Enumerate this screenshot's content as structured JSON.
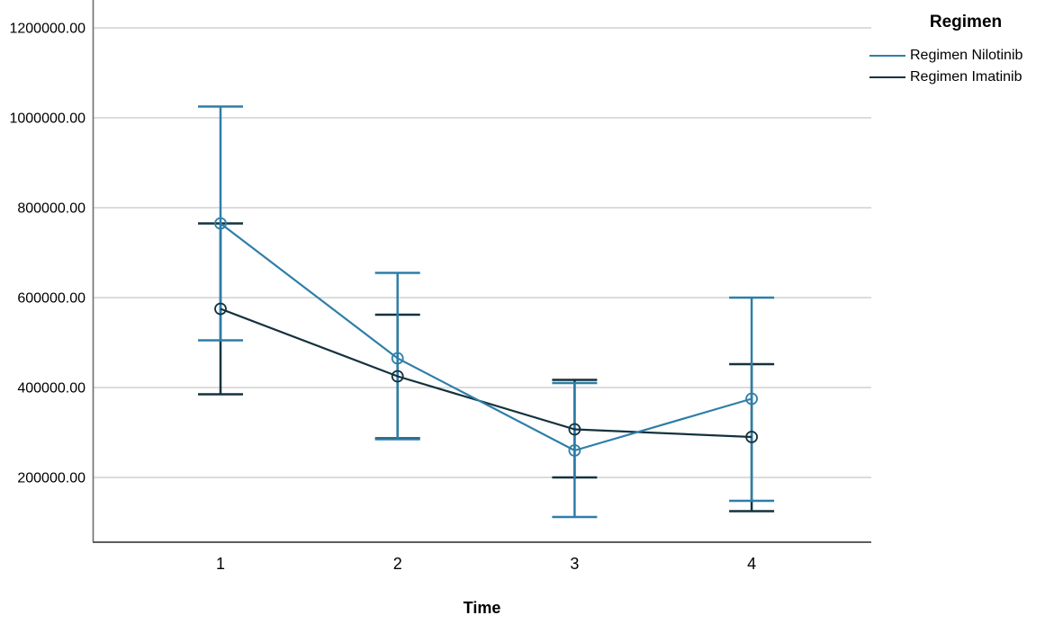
{
  "chart_data": {
    "type": "line",
    "title": "",
    "xlabel": "Time",
    "ylabel": "",
    "x_categories": [
      "1",
      "2",
      "3",
      "4"
    ],
    "y_ticks": {
      "values": [
        200000,
        400000,
        600000,
        800000,
        1000000,
        1200000
      ],
      "labels": [
        "200000.00",
        "400000.00",
        "600000.00",
        "800000.00",
        "1000000.00",
        "1200000.00"
      ]
    },
    "ylim": [
      56000,
      1262000
    ],
    "grid": "horizontal",
    "marker": "open-circle",
    "error_bars": "vertical bars with caps (confidence intervals)",
    "legend": {
      "title": "Regimen",
      "position": "top-right"
    },
    "series": [
      {
        "name": "Regimen Nilotinib",
        "color": "#2E7EA8",
        "means": [
          765000,
          465000,
          260000,
          375000
        ],
        "upper": [
          1025000,
          655000,
          410000,
          600000
        ],
        "lower": [
          505000,
          285000,
          112000,
          148000
        ]
      },
      {
        "name": "Regimen Imatinib",
        "color": "#14323E",
        "means": [
          575000,
          425000,
          307000,
          290000
        ],
        "upper": [
          765000,
          562000,
          417000,
          452000
        ],
        "lower": [
          385000,
          287000,
          200000,
          125000
        ]
      }
    ],
    "style": {
      "grid_color": "#C8C8C8",
      "axis_color": "#6E6E6E",
      "background": "#FFFFFF",
      "text_color": "#000000"
    }
  }
}
